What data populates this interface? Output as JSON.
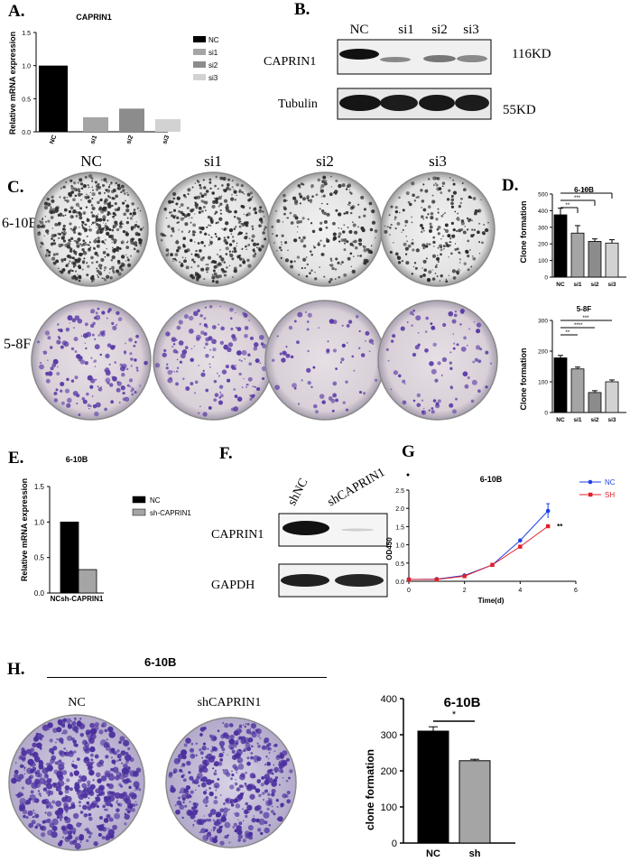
{
  "panels": {
    "A": {
      "letter": "A.",
      "title": "CAPRIN1",
      "ylabel": "Relative mRNA expression",
      "yticks": [
        "0.0",
        "0.5",
        "1.0",
        "1.5"
      ],
      "legend": [
        "NC",
        "si1",
        "si2",
        "si3"
      ]
    },
    "B": {
      "letter": "B.",
      "lanes": [
        "NC",
        "si1",
        "si2",
        "si3"
      ],
      "rows": [
        "CAPRIN1",
        "Tubulin"
      ],
      "sizes": [
        "116KD",
        "55KD"
      ]
    },
    "C": {
      "letter": "C.",
      "cols": [
        "NC",
        "si1",
        "si2",
        "si3"
      ],
      "rows": [
        "6-10B",
        "5-8F"
      ]
    },
    "D": {
      "letter": "D.",
      "top": {
        "title": "6-10B",
        "ylabel": "Clone formation",
        "yticks": [
          "0",
          "100",
          "200",
          "300",
          "400",
          "500"
        ],
        "sig": [
          "**",
          "***",
          "***"
        ]
      },
      "bottom": {
        "title": "5-8F",
        "ylabel": "Clone formation",
        "yticks": [
          "0",
          "100",
          "200",
          "300"
        ],
        "sig": [
          "**",
          "****",
          "***"
        ]
      }
    },
    "E": {
      "letter": "E.",
      "title": "6-10B",
      "ylabel": "Relative mRNA expression",
      "yticks": [
        "0.0",
        "0.5",
        "1.0",
        "1.5"
      ],
      "xlabel_combined": "NCsh-CAPRIN1",
      "legend": [
        "NC",
        "sh-CAPRIN1"
      ]
    },
    "F": {
      "letter": "F.",
      "lanes": [
        "shNC",
        "shCAPRIN1"
      ],
      "rows": [
        "CAPRIN1",
        "GAPDH"
      ]
    },
    "G": {
      "letter": "G",
      "title": "6-10B",
      "ylabel": "OD450",
      "xlabel": "Time(d)",
      "yticks": [
        "0.0",
        "0.5",
        "1.0",
        "1.5",
        "2.0",
        "2.5"
      ],
      "xticks": [
        "0",
        "2",
        "4",
        "6"
      ],
      "legend": [
        "NC",
        "SH"
      ],
      "sig": "**"
    },
    "H": {
      "letter": "H.",
      "header": "6-10B",
      "cols": [
        "NC",
        "shCAPRIN1"
      ],
      "chart_title": "6-10B",
      "ylabel": "clone formation",
      "yticks": [
        "0",
        "100",
        "200",
        "300",
        "400"
      ],
      "sig": "*"
    }
  },
  "colors": {
    "nc": "#000000",
    "si1": "#a5a5a5",
    "si2": "#8c8c8c",
    "si3": "#d2d2d2",
    "blue": "#1f3fe6",
    "red": "#e0202a",
    "purple": "#5a3aa6"
  },
  "chart_data": [
    {
      "type": "bar",
      "panel": "A",
      "title": "CAPRIN1",
      "ylabel": "Relative mRNA expression",
      "categories": [
        "NC",
        "si1",
        "si2",
        "si3"
      ],
      "values": [
        1.0,
        0.22,
        0.35,
        0.19
      ],
      "ylim": [
        0,
        1.5
      ]
    },
    {
      "type": "bar",
      "panel": "D-top",
      "title": "6-10B",
      "ylabel": "Clone formation",
      "categories": [
        "NC",
        "si1",
        "si2",
        "si3"
      ],
      "values": [
        375,
        265,
        215,
        205
      ],
      "errors": [
        40,
        45,
        15,
        20
      ],
      "ylim": [
        0,
        500
      ]
    },
    {
      "type": "bar",
      "panel": "D-bottom",
      "title": "5-8F",
      "ylabel": "Clone formation",
      "categories": [
        "NC",
        "si1",
        "si2",
        "si3"
      ],
      "values": [
        178,
        142,
        65,
        100
      ],
      "errors": [
        8,
        6,
        6,
        6
      ],
      "ylim": [
        0,
        300
      ]
    },
    {
      "type": "bar",
      "panel": "E",
      "title": "6-10B",
      "ylabel": "Relative mRNA expression",
      "categories": [
        "NC",
        "sh-CAPRIN1"
      ],
      "values": [
        1.0,
        0.33
      ],
      "ylim": [
        0,
        1.5
      ]
    },
    {
      "type": "line",
      "panel": "G",
      "title": "6-10B",
      "xlabel": "Time(d)",
      "ylabel": "OD450",
      "xlim": [
        0,
        6
      ],
      "ylim": [
        0,
        2.5
      ],
      "series": [
        {
          "name": "NC",
          "x": [
            0,
            1,
            2,
            3,
            4,
            5
          ],
          "values": [
            0.05,
            0.06,
            0.16,
            0.45,
            1.12,
            1.93
          ]
        },
        {
          "name": "SH",
          "x": [
            0,
            1,
            2,
            3,
            4,
            5
          ],
          "values": [
            0.05,
            0.05,
            0.14,
            0.45,
            0.95,
            1.51
          ]
        }
      ]
    },
    {
      "type": "bar",
      "panel": "H",
      "title": "6-10B",
      "ylabel": "clone formation",
      "categories": [
        "NC",
        "sh"
      ],
      "values": [
        310,
        228
      ],
      "errors": [
        12,
        4
      ],
      "ylim": [
        0,
        400
      ]
    }
  ]
}
